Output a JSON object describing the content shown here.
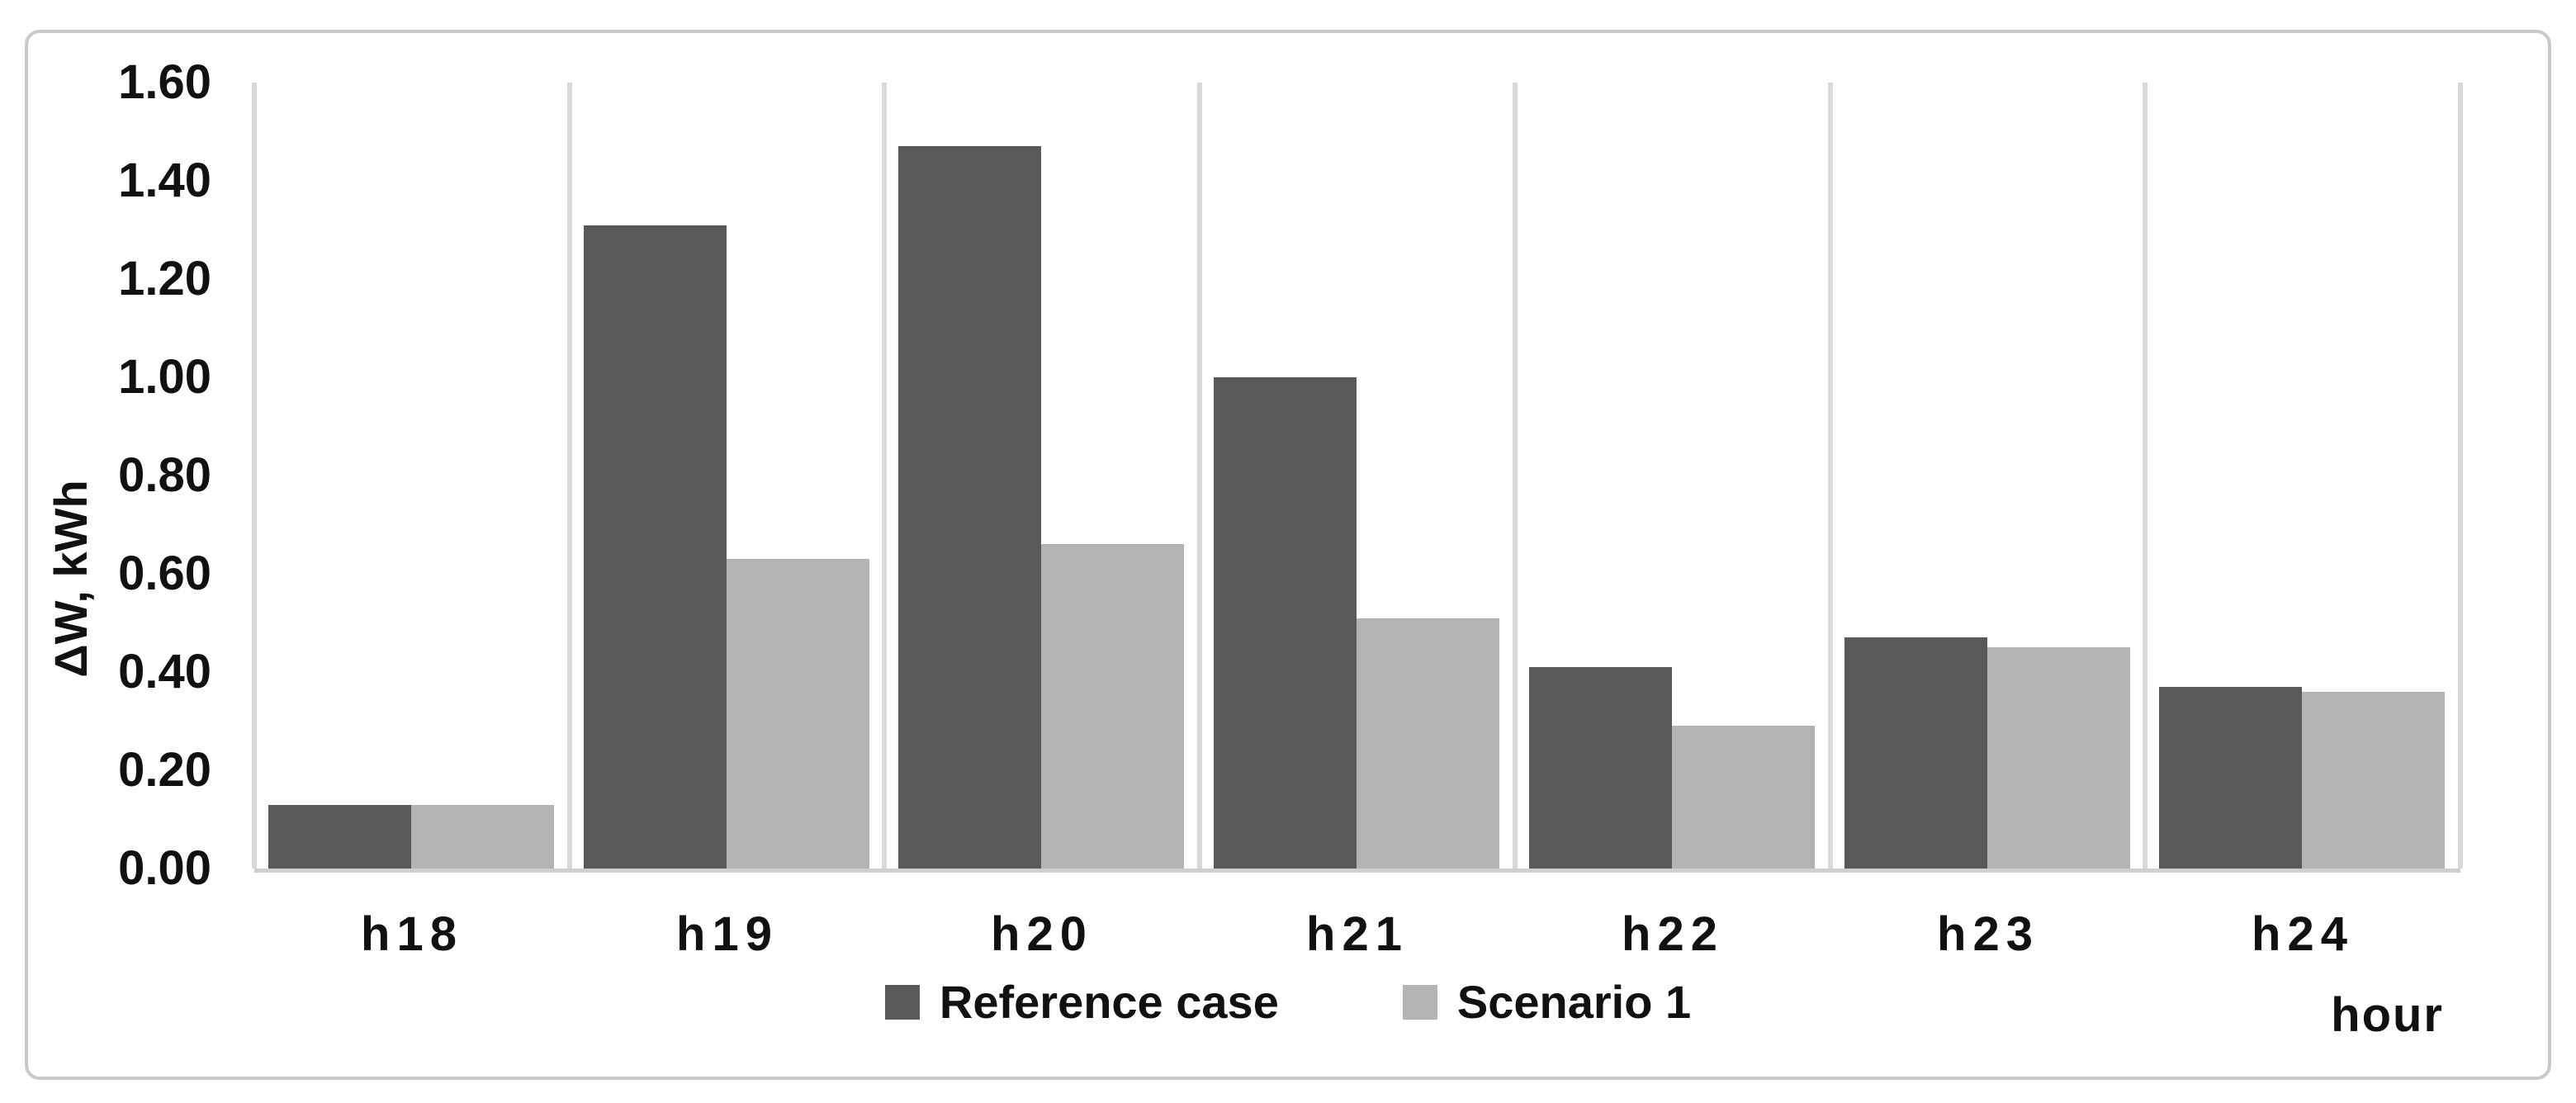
{
  "figure": {
    "background": "#ffffff",
    "border_color": "#c9c9c9",
    "gridline_color": "#d9d9d9",
    "text_color": "#111111"
  },
  "chart_data": {
    "type": "bar",
    "categories": [
      "h18",
      "h19",
      "h20",
      "h21",
      "h22",
      "h23",
      "h24"
    ],
    "series": [
      {
        "name": "Reference case",
        "color": "#595959",
        "values": [
          0.13,
          1.31,
          1.47,
          1.0,
          0.41,
          0.47,
          0.37
        ]
      },
      {
        "name": "Scenario 1",
        "color": "#b3b3b3",
        "values": [
          0.13,
          0.63,
          0.66,
          0.51,
          0.29,
          0.45,
          0.36
        ]
      }
    ],
    "title": "",
    "xlabel": "hour",
    "ylabel": "ΔW, kWh",
    "ylim": [
      0,
      1.6
    ],
    "ytick_step": 0.2,
    "ytick_labels": [
      "0.00",
      "0.20",
      "0.40",
      "0.60",
      "0.80",
      "1.00",
      "1.20",
      "1.40",
      "1.60"
    ],
    "grid": "vertical-between-categories",
    "legend_position": "bottom-center"
  }
}
